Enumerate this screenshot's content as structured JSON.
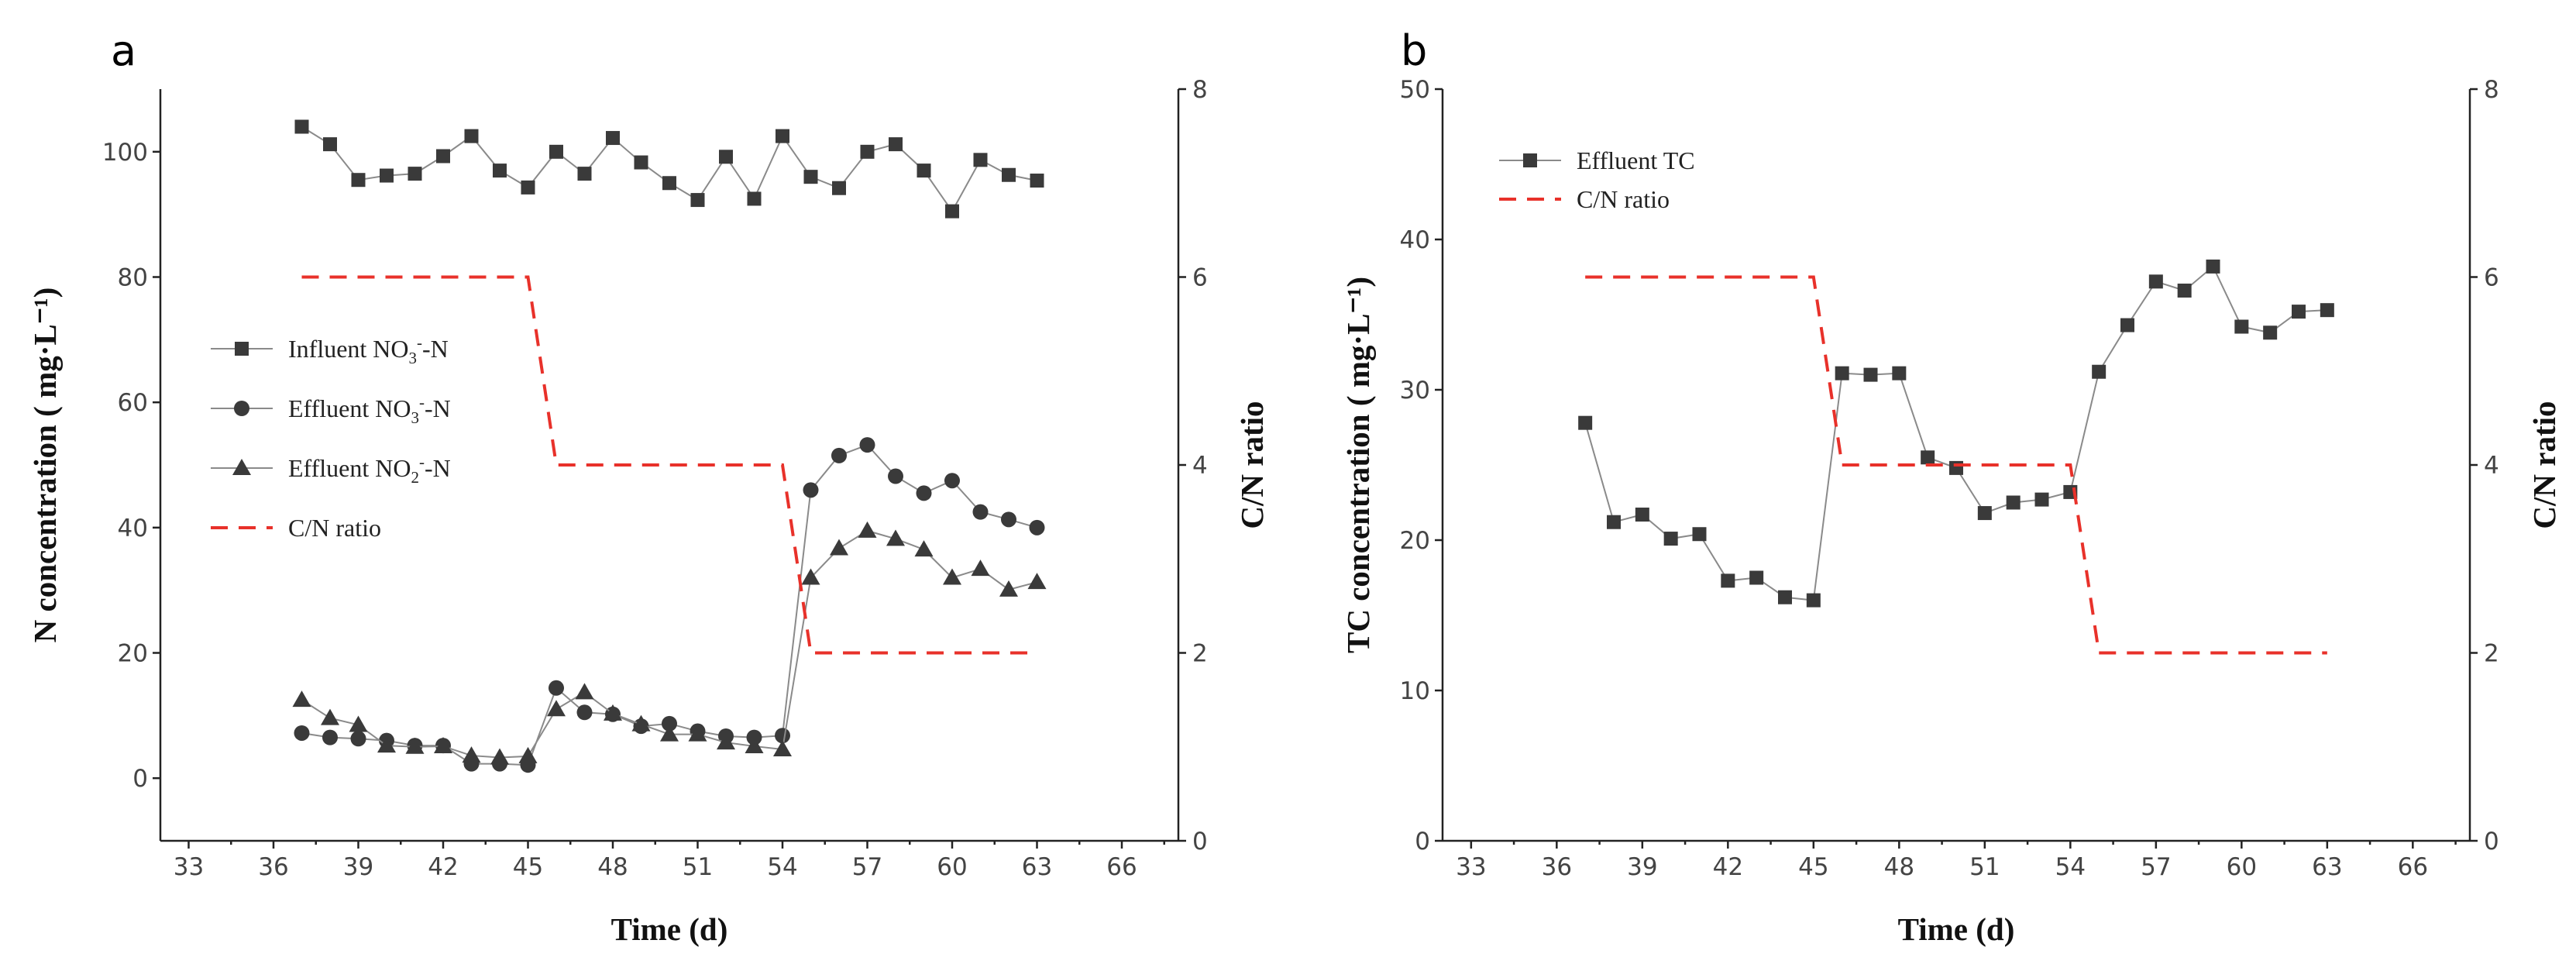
{
  "panel_a": {
    "label": "a",
    "legend": {
      "influent_no3": {
        "pre": "Influent NO",
        "sub": "3",
        "sup": "-",
        "post": "-N"
      },
      "effluent_no3": {
        "pre": "Effluent NO",
        "sub": "3",
        "sup": "-",
        "post": "-N"
      },
      "effluent_no2": {
        "pre": "Effluent NO",
        "sub": "2",
        "sup": "-",
        "post": "-N"
      },
      "cn_ratio": "C/N ratio"
    }
  },
  "panel_b": {
    "label": "b",
    "legend": {
      "effluent_tc": "Effluent TC",
      "cn_ratio": "C/N ratio"
    }
  },
  "colors": {
    "series": "#3a3a3a",
    "line": "#8a8a8a",
    "cn": "#e8312a",
    "axis": "#222222"
  },
  "chart_data": [
    {
      "type": "line",
      "panel": "a",
      "xlabel": "Time (d)",
      "ylabel": "N concentration ( mg·L⁻¹)",
      "y2label": "C/N ratio",
      "xlim": [
        32,
        68
      ],
      "ylim": [
        -10,
        110
      ],
      "y2lim": [
        0,
        8
      ],
      "xticks": [
        33,
        36,
        39,
        42,
        45,
        48,
        51,
        54,
        57,
        60,
        63,
        66
      ],
      "yticks": [
        0,
        20,
        40,
        60,
        80,
        100
      ],
      "y2ticks": [
        0,
        2,
        4,
        6,
        8
      ],
      "series": [
        {
          "name": "Influent NO3--N",
          "marker": "square",
          "axis": "left",
          "x": [
            37,
            38,
            39,
            40,
            41,
            42,
            43,
            44,
            45,
            46,
            47,
            48,
            49,
            50,
            51,
            52,
            53,
            54,
            55,
            56,
            57,
            58,
            59,
            60,
            61,
            62,
            63
          ],
          "values": [
            104,
            101.2,
            95.5,
            96.2,
            96.5,
            99.3,
            102.5,
            97,
            94.3,
            100,
            96.5,
            102.2,
            98.3,
            95,
            92.3,
            99.2,
            92.5,
            102.5,
            96,
            94.2,
            100,
            101.2,
            97,
            90.5,
            98.7,
            96.3,
            95.4
          ]
        },
        {
          "name": "Effluent NO3--N",
          "marker": "circle",
          "axis": "left",
          "x": [
            37,
            38,
            39,
            40,
            41,
            42,
            43,
            44,
            45,
            46,
            47,
            48,
            49,
            50,
            51,
            52,
            53,
            54,
            55,
            56,
            57,
            58,
            59,
            60,
            61,
            62,
            63
          ],
          "values": [
            7.2,
            6.5,
            6.3,
            6,
            5.2,
            5.2,
            2.3,
            2.3,
            2.1,
            14.4,
            10.5,
            10.2,
            8.3,
            8.7,
            7.5,
            6.7,
            6.5,
            6.8,
            46,
            51.5,
            53.2,
            48.2,
            45.5,
            47.5,
            42.5,
            41.3,
            40
          ]
        },
        {
          "name": "Effluent NO2--N",
          "marker": "triangle",
          "axis": "left",
          "x": [
            37,
            38,
            39,
            40,
            41,
            42,
            43,
            44,
            45,
            46,
            47,
            48,
            49,
            50,
            51,
            52,
            53,
            54,
            55,
            56,
            57,
            58,
            59,
            60,
            61,
            62,
            63
          ],
          "values": [
            12.5,
            9.6,
            8.5,
            5.2,
            5,
            5.1,
            3.6,
            3.3,
            3.5,
            11,
            13.7,
            10.3,
            8.6,
            7,
            7,
            5.7,
            5.1,
            4.6,
            32,
            36.7,
            39.5,
            38.2,
            36.5,
            32,
            33.4,
            30.1,
            31.3
          ]
        },
        {
          "name": "C/N ratio",
          "style": "dashed",
          "axis": "right",
          "x": [
            37,
            45,
            46,
            54,
            55,
            63
          ],
          "values": [
            6,
            6,
            4,
            4,
            2,
            2
          ]
        }
      ]
    },
    {
      "type": "line",
      "panel": "b",
      "xlabel": "Time (d)",
      "ylabel": "TC concentration ( mg·L⁻¹)",
      "y2label": "C/N ratio",
      "xlim": [
        32,
        68
      ],
      "ylim": [
        0,
        50
      ],
      "y2lim": [
        0,
        8
      ],
      "xticks": [
        33,
        36,
        39,
        42,
        45,
        48,
        51,
        54,
        57,
        60,
        63,
        66
      ],
      "yticks": [
        0,
        10,
        20,
        30,
        40,
        50
      ],
      "y2ticks": [
        0,
        2,
        4,
        6,
        8
      ],
      "series": [
        {
          "name": "Effluent TC",
          "marker": "square",
          "axis": "left",
          "x": [
            37,
            38,
            39,
            40,
            41,
            42,
            43,
            44,
            45,
            46,
            47,
            48,
            49,
            50,
            51,
            52,
            53,
            54,
            55,
            56,
            57,
            58,
            59,
            60,
            61,
            62,
            63
          ],
          "values": [
            27.8,
            21.2,
            21.7,
            20.1,
            20.4,
            17.3,
            17.5,
            16.2,
            16,
            31.1,
            31,
            31.1,
            25.5,
            24.8,
            21.8,
            22.5,
            22.7,
            23.2,
            31.2,
            34.3,
            37.2,
            36.6,
            38.2,
            34.2,
            33.8,
            35.2,
            35.3
          ]
        },
        {
          "name": "C/N ratio",
          "style": "dashed",
          "axis": "right",
          "x": [
            37,
            45,
            46,
            54,
            55,
            63
          ],
          "values": [
            6,
            6,
            4,
            4,
            2,
            2
          ]
        }
      ]
    }
  ]
}
